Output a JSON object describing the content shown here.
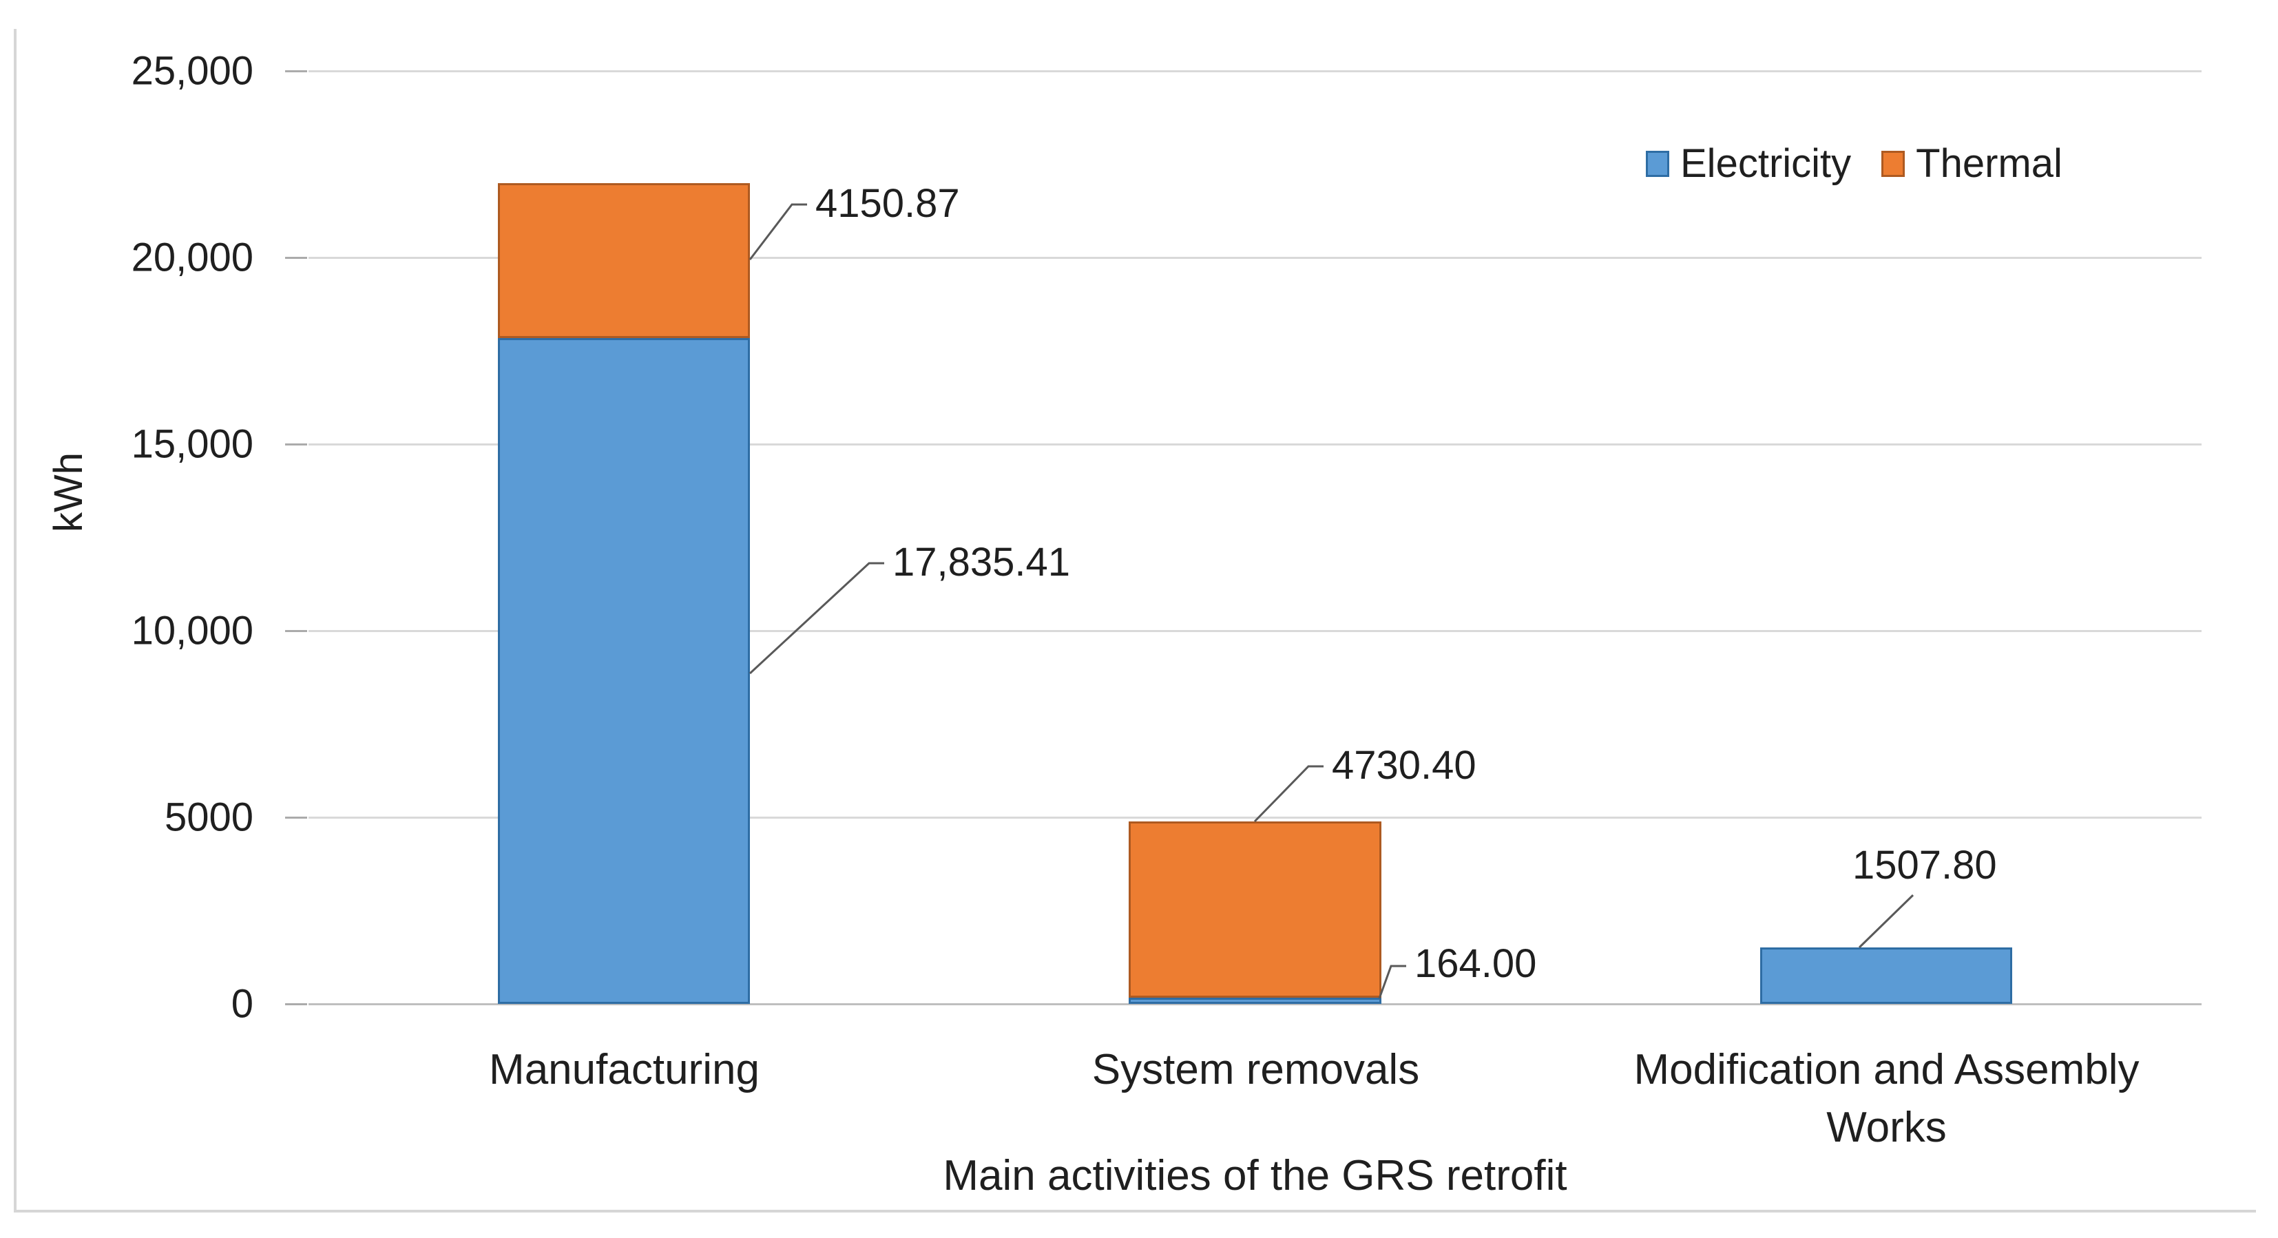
{
  "chart_data": {
    "type": "bar",
    "subtype": "stacked-vertical",
    "title": "",
    "categories": [
      "Manufacturing",
      "System removals",
      "Modification and Assembly Works"
    ],
    "series": [
      {
        "name": "Electricity",
        "color": "#5B9BD5",
        "border_color": "#2E6DA4",
        "values": [
          17835.41,
          164.0,
          1507.8
        ]
      },
      {
        "name": "Thermal",
        "color": "#ED7D31",
        "border_color": "#AE5A21",
        "values": [
          4150.87,
          4730.4,
          0
        ]
      }
    ],
    "data_labels": {
      "manufacturing_thermal": "4150.87",
      "manufacturing_electricity": "17,835.41",
      "system_thermal": "4730.40",
      "system_electricity": "164.00",
      "modification_electricity": "1507.80"
    },
    "xlabel": "Main activities of the GRS retrofit",
    "ylabel": "kWh",
    "ylim": [
      0,
      25000
    ],
    "ytick_labels": [
      "25,000",
      "20,000",
      "15,000",
      "10,000",
      "5000",
      "0"
    ],
    "ytick_values": [
      25000,
      20000,
      15000,
      10000,
      5000,
      0
    ],
    "grid": true,
    "legend_position": "top-right",
    "gap_width_percent": 150,
    "gridline_color": "#D9D9D9",
    "axis_line_color": "#BFBFBF",
    "leader_line_color": "#595959"
  }
}
